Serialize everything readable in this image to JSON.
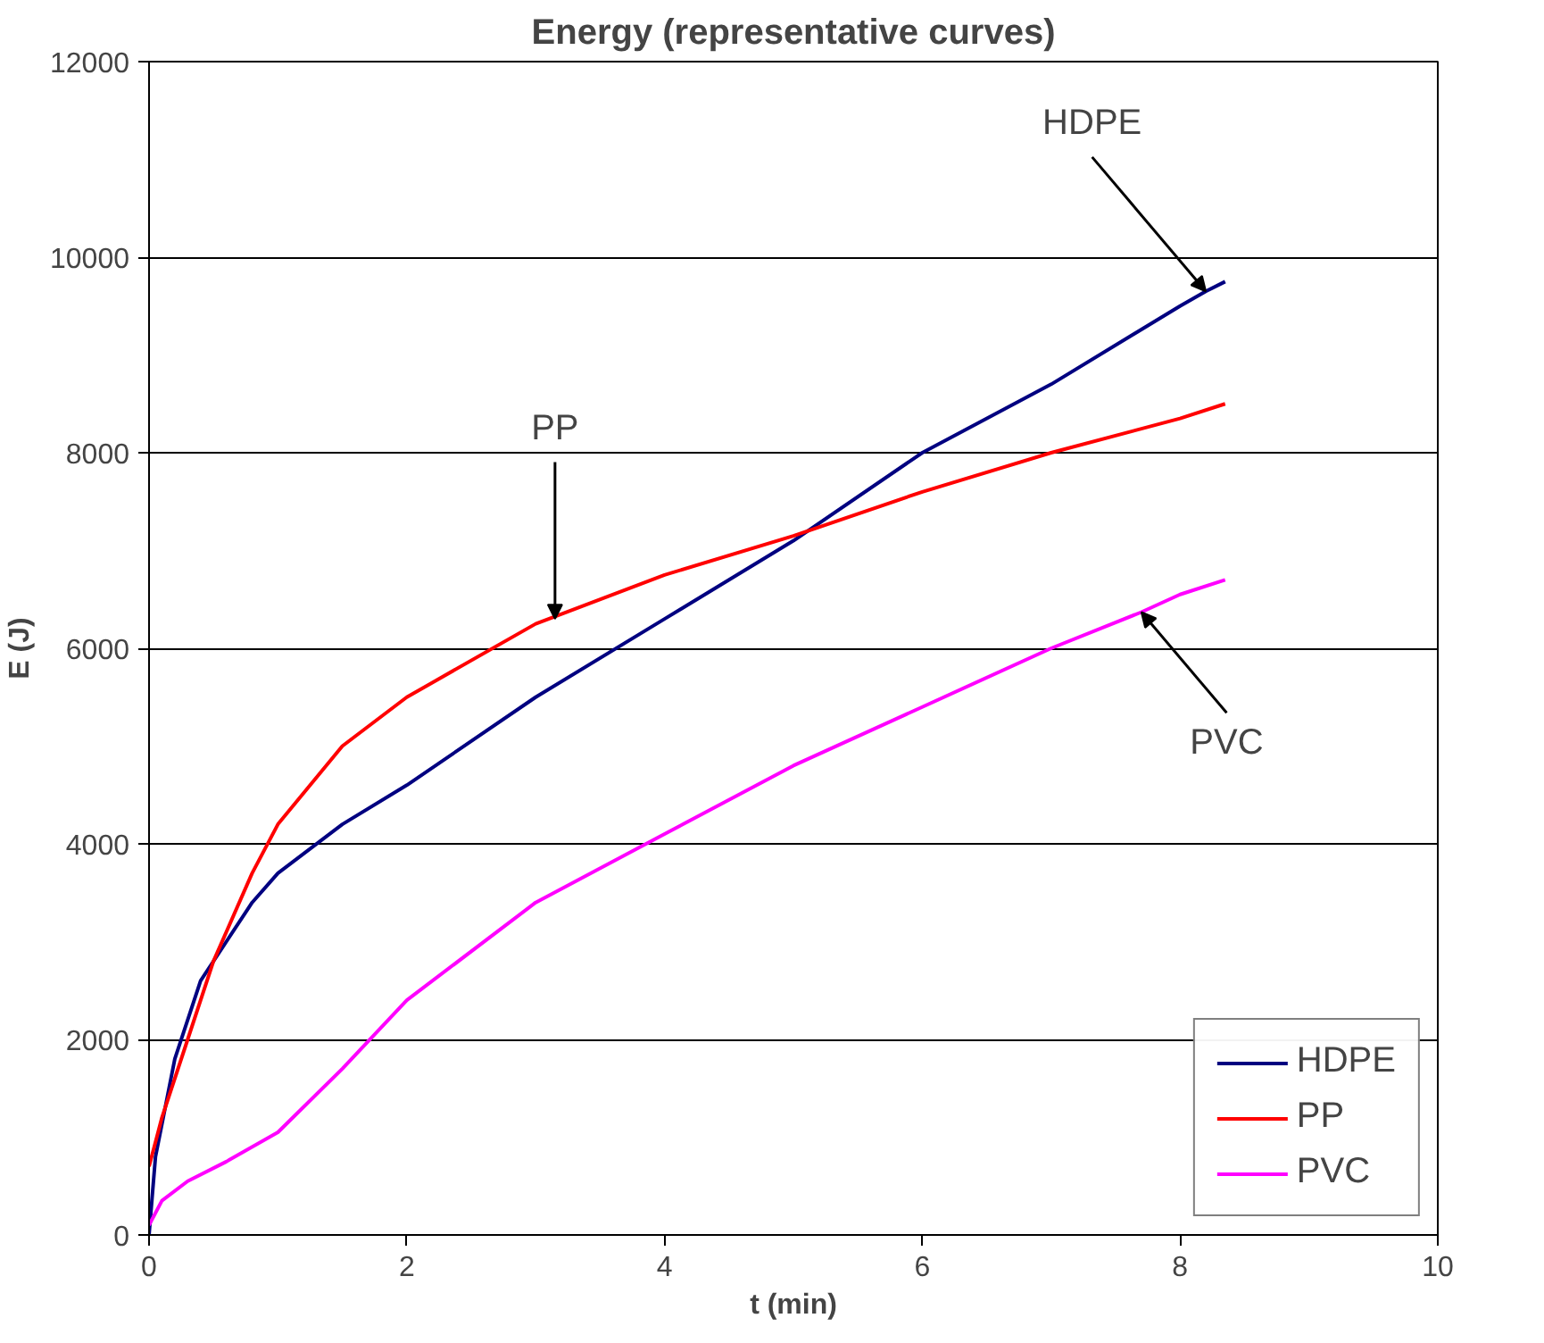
{
  "chart_data": {
    "type": "line",
    "title": "Energy (representative curves)",
    "xlabel": "t (min)",
    "ylabel": "E (J)",
    "xlim": [
      0,
      10
    ],
    "xticks": [
      0,
      2,
      4,
      6,
      8,
      10
    ],
    "ylim": [
      0,
      12000
    ],
    "yticks": [
      0,
      2000,
      4000,
      6000,
      8000,
      10000,
      12000
    ],
    "grid": "y",
    "legend": "bottom right",
    "marker": "none",
    "line_style": "solid",
    "series": [
      {
        "name": "HDPE",
        "color": "#000080",
        "x": [
          0,
          0.05,
          0.2,
          0.4,
          0.6,
          0.8,
          1,
          1.5,
          2,
          3,
          4,
          5,
          6,
          7,
          8,
          8.2,
          8.35
        ],
        "values": [
          0,
          800,
          1800,
          2600,
          3000,
          3400,
          3700,
          4200,
          4600,
          5500,
          6300,
          7100,
          8000,
          8700,
          9500,
          9650,
          9750
        ]
      },
      {
        "name": "PP",
        "color": "#ff0000",
        "x": [
          0,
          0.1,
          0.3,
          0.5,
          0.8,
          1,
          1.5,
          2,
          3,
          4,
          5,
          6,
          7,
          8,
          8.35
        ],
        "values": [
          700,
          1200,
          2000,
          2800,
          3700,
          4200,
          5000,
          5500,
          6250,
          6750,
          7150,
          7600,
          8000,
          8350,
          8500
        ]
      },
      {
        "name": "PVC",
        "color": "#ff00ff",
        "x": [
          0,
          0.1,
          0.3,
          0.6,
          1,
          1.5,
          2,
          3,
          4,
          5,
          6,
          7,
          7.7,
          8,
          8.35
        ],
        "values": [
          100,
          350,
          550,
          750,
          1050,
          1700,
          2400,
          3400,
          4100,
          4800,
          5400,
          6000,
          6370,
          6550,
          6700
        ]
      }
    ],
    "annotations": [
      {
        "text": "HDPE",
        "x": 8.2,
        "y": 9650
      },
      {
        "text": "PP",
        "x": 3.15,
        "y": 6300
      },
      {
        "text": "PVC",
        "x": 7.7,
        "y": 6370
      }
    ]
  }
}
